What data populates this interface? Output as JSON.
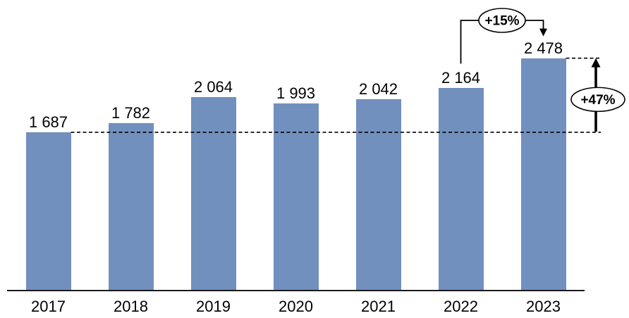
{
  "chart_data": {
    "type": "bar",
    "title": "",
    "xlabel": "",
    "ylabel": "",
    "categories": [
      "2017",
      "2018",
      "2019",
      "2020",
      "2021",
      "2022",
      "2023"
    ],
    "values": [
      1687,
      1782,
      2064,
      1993,
      2042,
      2164,
      2478
    ],
    "value_labels": [
      "1 687",
      "1 782",
      "2 064",
      "1 993",
      "2 042",
      "2 164",
      "2 478"
    ],
    "ylim": [
      0,
      3098
    ],
    "grid": false,
    "legend": false,
    "bar_color": "#7190BE",
    "axis_color": "#1a1a1a",
    "text_color": "#000000",
    "annotations": {
      "pct_15": "+15%",
      "pct_47": "+47%"
    },
    "reference_lines": [
      {
        "value": 1687,
        "style": "dashed"
      },
      {
        "value": 2478,
        "style": "dashed"
      }
    ]
  }
}
